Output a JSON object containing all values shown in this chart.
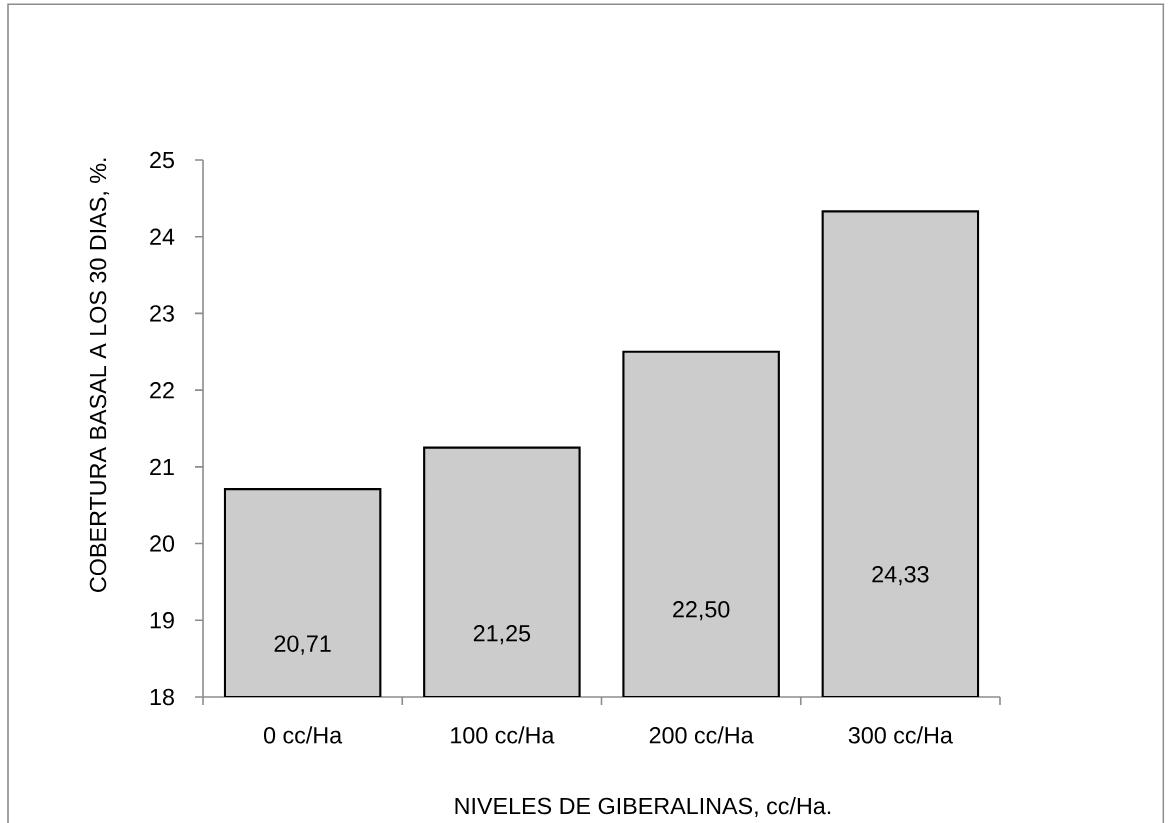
{
  "chart_data": {
    "type": "bar",
    "xlabel": "NIVELES DE GIBERALINAS, cc/Ha.",
    "ylabel": "COBERTURA BASAL A LOS   30  DIAS, %.",
    "categories": [
      "0 cc/Ha",
      "100 cc/Ha",
      "200 cc/Ha",
      "300 cc/Ha"
    ],
    "values": [
      20.71,
      21.25,
      22.5,
      24.33
    ],
    "value_labels": [
      "20,71",
      "21,25",
      "22,50",
      "24,33"
    ],
    "color": "#cccccc",
    "ylim": [
      18,
      25
    ],
    "yticks": [
      18,
      19,
      20,
      21,
      22,
      23,
      24,
      25
    ],
    "grid": false
  }
}
